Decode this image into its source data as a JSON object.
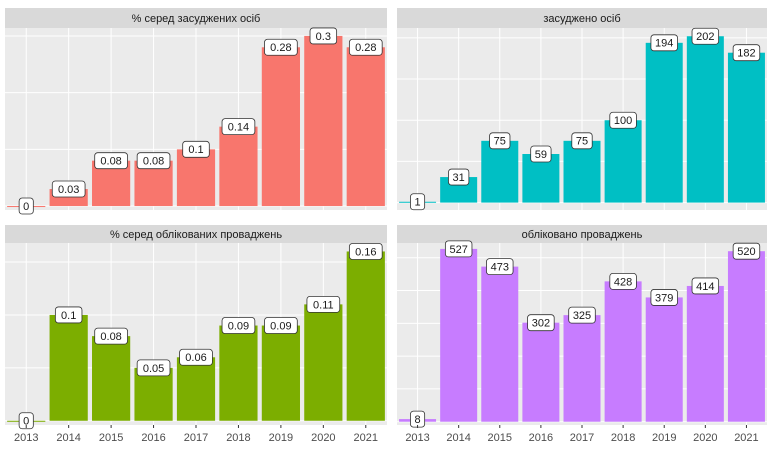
{
  "chart_data": [
    {
      "type": "bar",
      "title": "% серед засуджених осіб",
      "values": [
        0,
        0.03,
        0.08,
        0.08,
        0.1,
        0.14,
        0.28,
        0.3,
        0.28
      ],
      "color": "#F8766D",
      "ylim": [
        -0.007,
        0.314
      ],
      "yticks": [
        0,
        0.1,
        0.2,
        0.3
      ],
      "grid": true
    },
    {
      "type": "bar",
      "title": "засуджено осіб",
      "values": [
        1,
        31,
        75,
        59,
        75,
        100,
        194,
        202,
        182
      ],
      "color": "#00BFC4",
      "ylim": [
        -9,
        212
      ],
      "yticks": [
        0,
        50,
        100,
        150,
        200
      ],
      "grid": true
    },
    {
      "type": "bar",
      "title": "% серед облікованих проваджень",
      "categories": [
        "2013",
        "2014",
        "2015",
        "2016",
        "2017",
        "2018",
        "2019",
        "2020",
        "2021"
      ],
      "values": [
        0,
        0.1,
        0.08,
        0.05,
        0.06,
        0.09,
        0.09,
        0.11,
        0.16
      ],
      "color": "#7CAE00",
      "ylim": [
        -0.004,
        0.168
      ],
      "yticks": [
        0,
        0.05,
        0.1,
        0.15
      ],
      "grid": true
    },
    {
      "type": "bar",
      "title": "обліковано проваджень",
      "categories": [
        "2013",
        "2014",
        "2015",
        "2016",
        "2017",
        "2018",
        "2019",
        "2020",
        "2021"
      ],
      "values": [
        8,
        527,
        473,
        302,
        325,
        428,
        379,
        414,
        520
      ],
      "color": "#C77CFF",
      "ylim": [
        -10,
        545
      ],
      "yticks": [
        0,
        100,
        200,
        300,
        400,
        500
      ],
      "grid": true
    }
  ]
}
